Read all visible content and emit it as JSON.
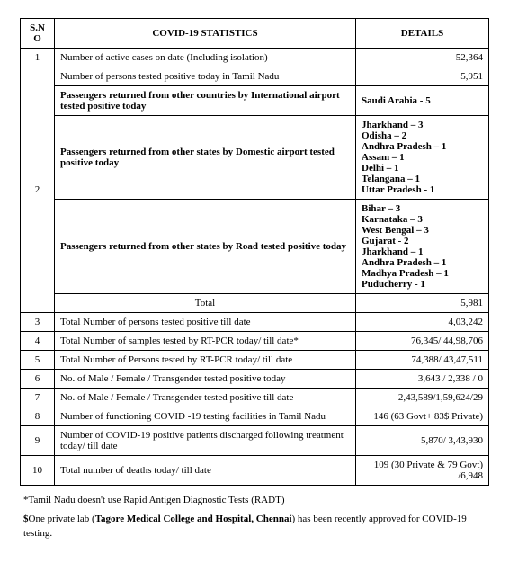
{
  "headers": {
    "sno": "S.NO",
    "stat": "COVID-19 STATISTICS",
    "det": "DETAILS"
  },
  "r1": {
    "sno": "1",
    "stat": "Number of active cases on date (Including isolation)",
    "det": "52,364"
  },
  "r2": {
    "sno": "2",
    "a_stat": "Number of persons tested positive today in Tamil Nadu",
    "a_det": "5,951",
    "b_stat": "Passengers returned from other countries by International airport tested positive today",
    "b_det": "Saudi Arabia - 5",
    "c_stat": "Passengers returned from other states by Domestic airport tested positive today",
    "c_states": {
      "s1": "Jharkhand – 3",
      "s2": "Odisha – 2",
      "s3": "Andhra Pradesh – 1",
      "s4": "Assam – 1",
      "s5": "Delhi – 1",
      "s6": "Telangana – 1",
      "s7": "Uttar Pradesh - 1"
    },
    "d_stat": "Passengers returned from other states by Road tested positive today",
    "d_states": {
      "s1": "Bihar – 3",
      "s2": "Karnataka – 3",
      "s3": "West Bengal – 3",
      "s4": "Gujarat - 2",
      "s5": "Jharkhand – 1",
      "s6": "Andhra Pradesh – 1",
      "s7": "Madhya Pradesh – 1",
      "s8": "Puducherry - 1"
    },
    "total_label": "Total",
    "total_val": "5,981"
  },
  "r3": {
    "sno": "3",
    "stat": "Total Number of persons tested positive till date",
    "det": "4,03,242"
  },
  "r4": {
    "sno": "4",
    "stat": "Total Number of samples tested by  RT-PCR today/ till date*",
    "det": "76,345/ 44,98,706"
  },
  "r5": {
    "sno": "5",
    "stat": "Total Number of Persons tested by  RT-PCR today/ till date",
    "det": "74,388/ 43,47,511"
  },
  "r6": {
    "sno": "6",
    "stat": "No. of Male / Female / Transgender tested positive today",
    "det": "3,643 / 2,338 / 0"
  },
  "r7": {
    "sno": "7",
    "stat": "No. of Male / Female / Transgender tested positive till date",
    "det": "2,43,589/1,59,624/29"
  },
  "r8": {
    "sno": "8",
    "stat": "Number of functioning COVID -19 testing facilities in Tamil Nadu",
    "det": "146 (63 Govt+ 83$ Private)"
  },
  "r9": {
    "sno": "9",
    "stat": "Number of COVID-19 positive patients discharged following treatment today/ till date",
    "det": "5,870/ 3,43,930"
  },
  "r10": {
    "sno": "10",
    "stat": "Total number of deaths today/ till date",
    "det": "109 (30 Private & 79 Govt) /6,948"
  },
  "footnotes": {
    "f1": "*Tamil Nadu doesn't use Rapid Antigen Diagnostic Tests (RADT)",
    "f2_pre": "$",
    "f2_mid": "One private lab (",
    "f2_bold": "Tagore Medical College and Hospital, Chennai",
    "f2_post": ") has been recently approved for COVID-19 testing."
  }
}
